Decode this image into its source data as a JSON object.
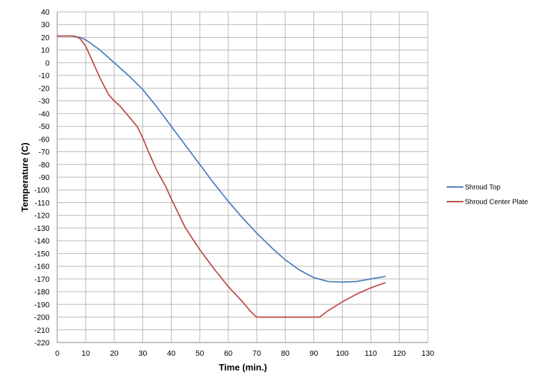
{
  "chart_data": {
    "type": "line",
    "xlabel": "Time (min.)",
    "ylabel": "Temperature (C)",
    "xlim": [
      0,
      130
    ],
    "ylim": [
      -220,
      40
    ],
    "x_ticks": [
      0,
      10,
      20,
      30,
      40,
      50,
      60,
      70,
      80,
      90,
      100,
      110,
      120,
      130
    ],
    "y_ticks": [
      40,
      30,
      20,
      10,
      0,
      -10,
      -20,
      -30,
      -40,
      -50,
      -60,
      -70,
      -80,
      -90,
      -100,
      -110,
      -120,
      -130,
      -140,
      -150,
      -160,
      -170,
      -180,
      -190,
      -200,
      -210,
      -220
    ],
    "grid": true,
    "legend_position": "right",
    "series": [
      {
        "name": "Shroud Top",
        "color": "#4a7ebb",
        "points": [
          [
            0,
            21
          ],
          [
            5,
            21
          ],
          [
            8,
            20
          ],
          [
            10,
            18
          ],
          [
            15,
            10
          ],
          [
            20,
            0
          ],
          [
            25,
            -10
          ],
          [
            30,
            -21
          ],
          [
            35,
            -35
          ],
          [
            40,
            -50
          ],
          [
            45,
            -65
          ],
          [
            50,
            -80
          ],
          [
            55,
            -95
          ],
          [
            60,
            -109
          ],
          [
            65,
            -122
          ],
          [
            70,
            -134
          ],
          [
            75,
            -145
          ],
          [
            80,
            -155
          ],
          [
            85,
            -163
          ],
          [
            90,
            -169
          ],
          [
            95,
            -172
          ],
          [
            100,
            -172.5
          ],
          [
            105,
            -172
          ],
          [
            110,
            -170
          ],
          [
            115,
            -168
          ]
        ]
      },
      {
        "name": "Shroud Center Plate",
        "color": "#be4b48",
        "points": [
          [
            0,
            21
          ],
          [
            6,
            21
          ],
          [
            8,
            19
          ],
          [
            10,
            13
          ],
          [
            12,
            3
          ],
          [
            15,
            -12
          ],
          [
            18,
            -25
          ],
          [
            20,
            -30
          ],
          [
            22,
            -34
          ],
          [
            25,
            -42
          ],
          [
            28,
            -50
          ],
          [
            30,
            -59
          ],
          [
            32,
            -70
          ],
          [
            35,
            -85
          ],
          [
            38,
            -97
          ],
          [
            40,
            -107
          ],
          [
            45,
            -130
          ],
          [
            50,
            -147
          ],
          [
            55,
            -162
          ],
          [
            60,
            -176
          ],
          [
            65,
            -188
          ],
          [
            68,
            -196
          ],
          [
            70,
            -200
          ],
          [
            75,
            -200
          ],
          [
            80,
            -200
          ],
          [
            85,
            -200
          ],
          [
            90,
            -200
          ],
          [
            92,
            -200
          ],
          [
            95,
            -195
          ],
          [
            100,
            -188
          ],
          [
            105,
            -182
          ],
          [
            110,
            -177
          ],
          [
            115,
            -173
          ]
        ]
      }
    ]
  }
}
